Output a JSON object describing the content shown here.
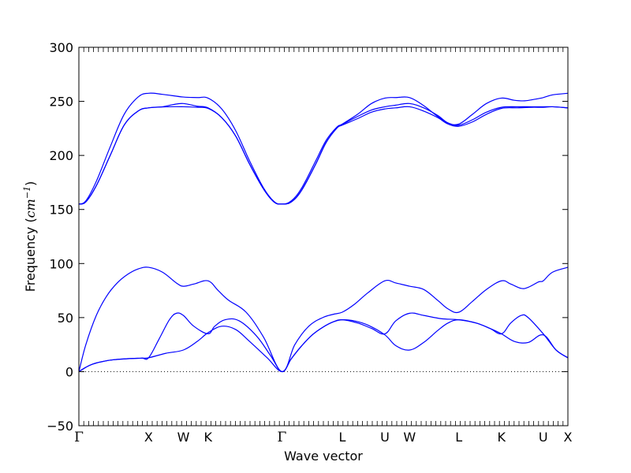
{
  "chart_data": {
    "type": "line",
    "xlabel": "Wave vector",
    "ylabel": {
      "text": "Frequency (",
      "unit_base": "cm",
      "unit_exp": "−1",
      "close": ")"
    },
    "ylim": [
      -50,
      300
    ],
    "y_ticks": [
      -50,
      0,
      50,
      100,
      150,
      200,
      250,
      300
    ],
    "y_tick_labels": [
      "−50",
      "0",
      "50",
      "100",
      "150",
      "200",
      "250",
      "300"
    ],
    "grid": false,
    "legend": "none",
    "zero_line": {
      "y": 0,
      "style": "dotted"
    },
    "high_symmetry_points": [
      {
        "label": "Γ",
        "pos": 0.0
      },
      {
        "label": "X",
        "pos": 1.0
      },
      {
        "label": "W",
        "pos": 1.5
      },
      {
        "label": "K",
        "pos": 1.854
      },
      {
        "label": "Γ",
        "pos": 2.915
      },
      {
        "label": "L",
        "pos": 3.781
      },
      {
        "label": "U",
        "pos": 4.393
      },
      {
        "label": "W",
        "pos": 4.747
      },
      {
        "label": "L",
        "pos": 5.454
      },
      {
        "label": "K",
        "pos": 6.066
      },
      {
        "label": "U",
        "pos": 6.666
      },
      {
        "label": "X",
        "pos": 7.02
      }
    ],
    "x_range": [
      0,
      7.02
    ],
    "series": [
      {
        "values": [
          [
            0.0,
            0
          ],
          [
            0.1,
            4
          ],
          [
            0.2,
            7
          ],
          [
            0.35,
            9.5
          ],
          [
            0.5,
            11
          ],
          [
            0.7,
            12
          ],
          [
            0.9,
            12.5
          ],
          [
            1.0,
            12.8
          ],
          [
            1.25,
            17
          ],
          [
            1.5,
            20
          ],
          [
            1.7,
            28
          ],
          [
            1.854,
            36
          ],
          [
            2.05,
            42
          ],
          [
            2.25,
            39
          ],
          [
            2.45,
            28
          ],
          [
            2.7,
            13
          ],
          [
            2.915,
            0
          ],
          [
            3.05,
            12
          ],
          [
            3.2,
            24
          ],
          [
            3.35,
            34
          ],
          [
            3.5,
            41
          ],
          [
            3.65,
            46
          ],
          [
            3.781,
            48
          ],
          [
            3.95,
            47
          ],
          [
            4.15,
            43
          ],
          [
            4.393,
            34
          ],
          [
            4.55,
            24
          ],
          [
            4.747,
            20
          ],
          [
            4.95,
            27
          ],
          [
            5.15,
            38
          ],
          [
            5.3,
            45
          ],
          [
            5.454,
            48
          ],
          [
            5.7,
            45
          ],
          [
            5.9,
            40
          ],
          [
            6.066,
            35
          ],
          [
            6.25,
            28
          ],
          [
            6.45,
            27
          ],
          [
            6.666,
            34
          ],
          [
            6.85,
            20
          ],
          [
            7.02,
            12.8
          ]
        ]
      },
      {
        "values": [
          [
            0.0,
            0
          ],
          [
            0.1,
            4
          ],
          [
            0.2,
            7
          ],
          [
            0.35,
            9.5
          ],
          [
            0.5,
            11
          ],
          [
            0.7,
            12
          ],
          [
            0.9,
            12.5
          ],
          [
            1.0,
            12.8
          ],
          [
            1.15,
            30
          ],
          [
            1.3,
            48
          ],
          [
            1.4,
            54
          ],
          [
            1.5,
            52
          ],
          [
            1.65,
            42
          ],
          [
            1.854,
            35
          ],
          [
            1.95,
            42
          ],
          [
            2.1,
            48
          ],
          [
            2.3,
            47
          ],
          [
            2.55,
            33
          ],
          [
            2.75,
            15
          ],
          [
            2.915,
            0
          ],
          [
            3.05,
            12
          ],
          [
            3.2,
            24
          ],
          [
            3.35,
            34
          ],
          [
            3.5,
            41
          ],
          [
            3.65,
            46
          ],
          [
            3.781,
            48
          ],
          [
            4.0,
            45
          ],
          [
            4.2,
            40
          ],
          [
            4.393,
            35
          ],
          [
            4.55,
            47
          ],
          [
            4.747,
            54
          ],
          [
            4.95,
            52
          ],
          [
            5.2,
            49
          ],
          [
            5.454,
            48
          ],
          [
            5.7,
            45
          ],
          [
            5.9,
            40
          ],
          [
            6.066,
            35
          ],
          [
            6.2,
            45
          ],
          [
            6.35,
            52
          ],
          [
            6.45,
            50
          ],
          [
            6.666,
            35
          ],
          [
            6.85,
            20
          ],
          [
            7.02,
            12.8
          ]
        ]
      },
      {
        "values": [
          [
            0.0,
            0
          ],
          [
            0.1,
            25
          ],
          [
            0.25,
            52
          ],
          [
            0.4,
            70
          ],
          [
            0.55,
            82
          ],
          [
            0.7,
            90
          ],
          [
            0.85,
            95
          ],
          [
            1.0,
            96.5
          ],
          [
            1.2,
            92
          ],
          [
            1.4,
            82
          ],
          [
            1.5,
            79
          ],
          [
            1.65,
            81
          ],
          [
            1.854,
            84
          ],
          [
            2.0,
            75
          ],
          [
            2.15,
            66
          ],
          [
            2.4,
            55
          ],
          [
            2.65,
            32
          ],
          [
            2.915,
            0
          ],
          [
            3.1,
            25
          ],
          [
            3.3,
            42
          ],
          [
            3.5,
            50
          ],
          [
            3.65,
            53
          ],
          [
            3.781,
            55
          ],
          [
            3.95,
            62
          ],
          [
            4.15,
            73
          ],
          [
            4.393,
            84
          ],
          [
            4.55,
            82
          ],
          [
            4.747,
            79
          ],
          [
            4.95,
            76
          ],
          [
            5.15,
            66
          ],
          [
            5.3,
            58
          ],
          [
            5.454,
            55
          ],
          [
            5.65,
            65
          ],
          [
            5.85,
            76
          ],
          [
            6.066,
            84
          ],
          [
            6.2,
            81
          ],
          [
            6.35,
            77
          ],
          [
            6.45,
            78
          ],
          [
            6.6,
            83
          ],
          [
            6.666,
            84
          ],
          [
            6.8,
            92
          ],
          [
            7.02,
            96.5
          ]
        ]
      },
      {
        "values": [
          [
            0.0,
            155
          ],
          [
            0.1,
            157
          ],
          [
            0.25,
            172
          ],
          [
            0.45,
            200
          ],
          [
            0.65,
            228
          ],
          [
            0.85,
            241
          ],
          [
            1.0,
            244
          ],
          [
            1.3,
            245
          ],
          [
            1.5,
            245
          ],
          [
            1.7,
            244.5
          ],
          [
            1.854,
            243.5
          ],
          [
            2.05,
            235
          ],
          [
            2.25,
            218
          ],
          [
            2.45,
            192
          ],
          [
            2.65,
            169
          ],
          [
            2.8,
            157
          ],
          [
            2.915,
            155
          ],
          [
            3.05,
            157
          ],
          [
            3.2,
            168
          ],
          [
            3.4,
            192
          ],
          [
            3.55,
            212
          ],
          [
            3.7,
            225
          ],
          [
            3.781,
            228
          ],
          [
            4.0,
            234
          ],
          [
            4.2,
            240
          ],
          [
            4.393,
            243
          ],
          [
            4.55,
            244
          ],
          [
            4.747,
            245
          ],
          [
            4.95,
            241
          ],
          [
            5.15,
            235
          ],
          [
            5.3,
            229
          ],
          [
            5.454,
            227
          ],
          [
            5.65,
            231
          ],
          [
            5.85,
            238
          ],
          [
            6.066,
            243.5
          ],
          [
            6.3,
            244
          ],
          [
            6.5,
            244.5
          ],
          [
            6.666,
            244.5
          ],
          [
            6.8,
            245
          ],
          [
            7.02,
            244
          ]
        ]
      },
      {
        "values": [
          [
            0.0,
            155
          ],
          [
            0.1,
            157
          ],
          [
            0.25,
            172
          ],
          [
            0.45,
            200
          ],
          [
            0.65,
            228
          ],
          [
            0.85,
            241
          ],
          [
            1.0,
            244
          ],
          [
            1.2,
            245
          ],
          [
            1.35,
            247
          ],
          [
            1.5,
            248
          ],
          [
            1.7,
            245.5
          ],
          [
            1.854,
            244
          ],
          [
            2.05,
            235
          ],
          [
            2.25,
            218
          ],
          [
            2.45,
            192
          ],
          [
            2.65,
            169
          ],
          [
            2.8,
            157
          ],
          [
            2.915,
            155
          ],
          [
            3.05,
            157
          ],
          [
            3.2,
            168
          ],
          [
            3.4,
            192
          ],
          [
            3.55,
            212
          ],
          [
            3.7,
            225
          ],
          [
            3.781,
            228.5
          ],
          [
            4.0,
            236
          ],
          [
            4.2,
            242
          ],
          [
            4.393,
            245
          ],
          [
            4.55,
            246.5
          ],
          [
            4.747,
            248
          ],
          [
            4.95,
            244
          ],
          [
            5.15,
            237
          ],
          [
            5.3,
            230
          ],
          [
            5.454,
            228
          ],
          [
            5.65,
            233
          ],
          [
            5.85,
            240
          ],
          [
            6.066,
            244.5
          ],
          [
            6.3,
            245
          ],
          [
            6.5,
            245
          ],
          [
            6.666,
            245
          ],
          [
            6.8,
            245
          ],
          [
            7.02,
            244
          ]
        ]
      },
      {
        "values": [
          [
            0.0,
            155
          ],
          [
            0.1,
            158
          ],
          [
            0.25,
            176
          ],
          [
            0.45,
            208
          ],
          [
            0.65,
            238
          ],
          [
            0.85,
            254
          ],
          [
            1.0,
            257.5
          ],
          [
            1.2,
            256.5
          ],
          [
            1.5,
            254
          ],
          [
            1.7,
            253.5
          ],
          [
            1.854,
            253
          ],
          [
            2.05,
            243
          ],
          [
            2.25,
            223
          ],
          [
            2.45,
            195
          ],
          [
            2.65,
            170
          ],
          [
            2.8,
            157.5
          ],
          [
            2.915,
            155
          ],
          [
            3.05,
            158
          ],
          [
            3.2,
            170
          ],
          [
            3.4,
            195
          ],
          [
            3.55,
            214
          ],
          [
            3.7,
            226
          ],
          [
            3.781,
            229
          ],
          [
            4.0,
            238
          ],
          [
            4.2,
            248
          ],
          [
            4.393,
            253
          ],
          [
            4.55,
            253.5
          ],
          [
            4.747,
            253.5
          ],
          [
            4.95,
            246
          ],
          [
            5.15,
            236
          ],
          [
            5.3,
            230
          ],
          [
            5.454,
            229
          ],
          [
            5.65,
            238
          ],
          [
            5.85,
            248
          ],
          [
            6.066,
            253
          ],
          [
            6.25,
            251
          ],
          [
            6.4,
            250.5
          ],
          [
            6.55,
            252
          ],
          [
            6.666,
            253.5
          ],
          [
            6.8,
            256
          ],
          [
            7.02,
            257.5
          ]
        ]
      }
    ],
    "series_color": "#0000ff",
    "text_color": "#000000"
  }
}
